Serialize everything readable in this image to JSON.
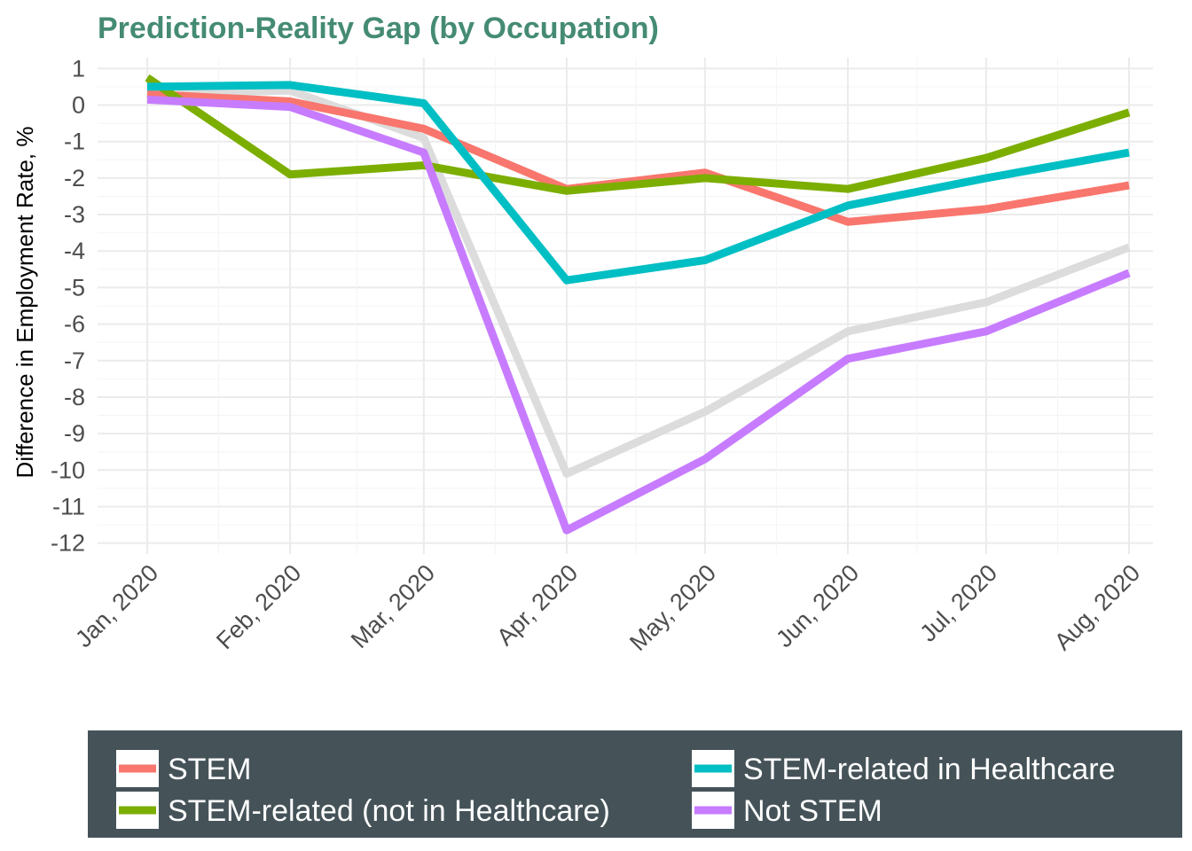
{
  "chart_data": {
    "type": "line",
    "title": "Prediction-Reality Gap (by Occupation)",
    "title_color": "#458B74",
    "xlabel": "",
    "ylabel": "Difference in Employment Rate, %",
    "ylim": [
      -12.3,
      1.3
    ],
    "yticks": [
      1,
      0,
      -1,
      -2,
      -3,
      -4,
      -5,
      -6,
      -7,
      -8,
      -9,
      -10,
      -11,
      -12
    ],
    "categories": [
      "Jan, 2020",
      "Feb, 2020",
      "Mar, 2020",
      "Apr, 2020",
      "May, 2020",
      "Jun, 2020",
      "Jul, 2020",
      "Aug, 2020"
    ],
    "x_days": [
      0,
      31,
      60,
      91,
      121,
      152,
      182,
      213
    ],
    "grid": true,
    "legend_position": "bottom",
    "legend_background": "#455359",
    "background_series_color": "#dcdcdc",
    "background_series": [
      {
        "values": [
          0.3,
          0.4,
          -0.9,
          -10.1,
          -8.4,
          -6.2,
          -5.4,
          -3.9
        ]
      }
    ],
    "series": [
      {
        "name": "STEM",
        "color": "#F8766D",
        "values": [
          0.3,
          0.1,
          -0.65,
          -2.3,
          -1.85,
          -3.2,
          -2.85,
          -2.2
        ]
      },
      {
        "name": "STEM-related (not in Healthcare)",
        "color": "#7CAE00",
        "values": [
          0.75,
          -1.9,
          -1.65,
          -2.35,
          -2.0,
          -2.3,
          -1.45,
          -0.2
        ]
      },
      {
        "name": "STEM-related in Healthcare",
        "color": "#00BFC4",
        "values": [
          0.5,
          0.55,
          0.05,
          -4.8,
          -4.25,
          -2.75,
          -2.0,
          -1.3
        ]
      },
      {
        "name": "Not STEM",
        "color": "#C77CFF",
        "values": [
          0.15,
          -0.05,
          -1.3,
          -11.65,
          -9.7,
          -6.95,
          -6.2,
          -4.6
        ]
      }
    ],
    "legend_order": [
      0,
      1,
      2,
      3
    ]
  }
}
